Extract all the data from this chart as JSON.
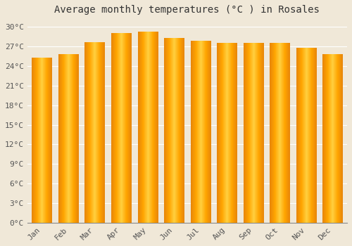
{
  "title": "Average monthly temperatures (°C ) in Rosales",
  "months": [
    "Jan",
    "Feb",
    "Mar",
    "Apr",
    "May",
    "Jun",
    "Jul",
    "Aug",
    "Sep",
    "Oct",
    "Nov",
    "Dec"
  ],
  "temperatures": [
    25.3,
    25.8,
    27.6,
    29.0,
    29.3,
    28.3,
    27.8,
    27.5,
    27.5,
    27.5,
    26.8,
    25.8
  ],
  "bar_color_edge": "#E8860A",
  "bar_color_center": "#FFD040",
  "bar_color_mid": "#FFA500",
  "ylim": [
    0,
    31
  ],
  "yticks": [
    0,
    3,
    6,
    9,
    12,
    15,
    18,
    21,
    24,
    27,
    30
  ],
  "ytick_labels": [
    "0°C",
    "3°C",
    "6°C",
    "9°C",
    "12°C",
    "15°C",
    "18°C",
    "21°C",
    "24°C",
    "27°C",
    "30°C"
  ],
  "background_color": "#f0e8d8",
  "plot_bg_color": "#f0e8d8",
  "grid_color": "#ffffff",
  "title_fontsize": 10,
  "tick_fontsize": 8,
  "bar_width": 0.75,
  "n_gradient_steps": 50
}
